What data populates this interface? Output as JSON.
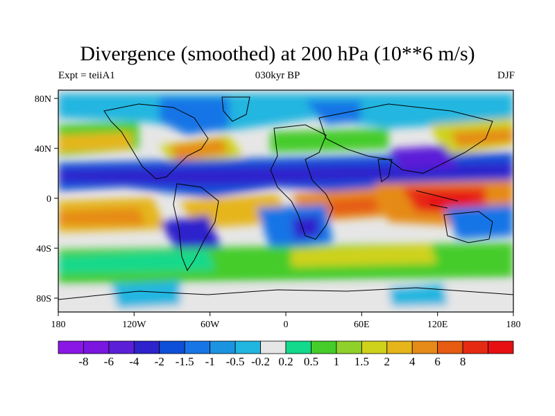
{
  "title": "Divergence (smoothed) at 200 hPa (10**6 m/s)",
  "left_label": "Expt = teiiA1",
  "center_label": "030kyr BP",
  "right_label": "DJF",
  "axes": {
    "x_ticks": [
      "180",
      "120W",
      "60W",
      "0",
      "60E",
      "120E",
      "180"
    ],
    "y_ticks": [
      "80N",
      "40N",
      "0",
      "40S",
      "80S"
    ]
  },
  "colorbar": {
    "colors": [
      "#8b17e6",
      "#7a16e0",
      "#5b1fd8",
      "#2d22cc",
      "#0d4fd8",
      "#1775e6",
      "#1a93e0",
      "#20b6e0",
      "#e6e6e6",
      "#12d98c",
      "#45cc2a",
      "#8fd12a",
      "#cfd21a",
      "#e6b51a",
      "#e68a17",
      "#e65a12",
      "#e62a12",
      "#e60f12"
    ],
    "labels": [
      "-8",
      "-6",
      "-4",
      "-2",
      "-1.5",
      "-1",
      "-0.5",
      "-0.2",
      "0.2",
      "0.5",
      "1",
      "1.5",
      "2",
      "4",
      "6",
      "8"
    ]
  }
}
